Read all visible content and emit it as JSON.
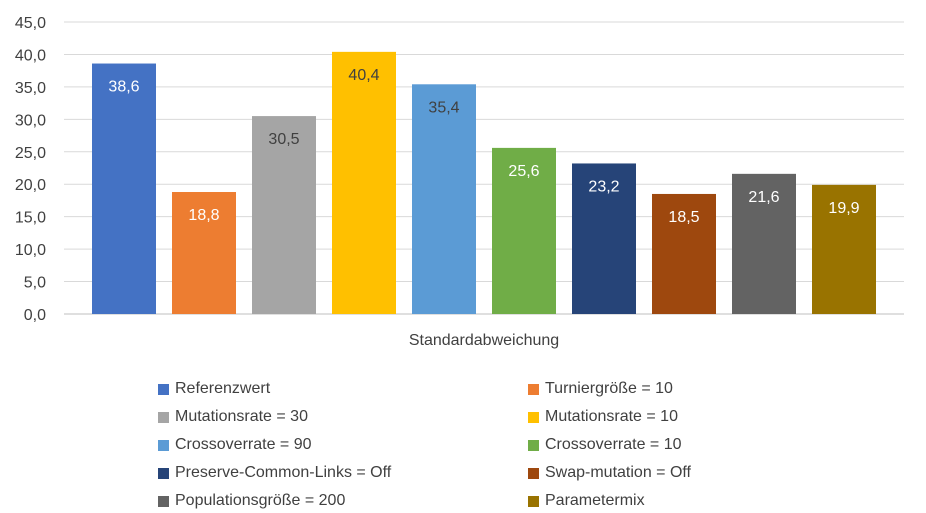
{
  "chart_data": {
    "type": "bar",
    "categories": [
      "Standardabweichung"
    ],
    "xlabel": "Standardabweichung",
    "ylabel": "",
    "ylim": [
      0,
      45
    ],
    "yticks": [
      "0,0",
      "5,0",
      "10,0",
      "15,0",
      "20,0",
      "25,0",
      "30,0",
      "35,0",
      "40,0",
      "45,0"
    ],
    "grid": true,
    "legend_position": "bottom",
    "series": [
      {
        "name": "Referenzwert",
        "values": [
          38.6
        ],
        "label": "38,6",
        "color": "#4472C4",
        "label_color": "#ffffff"
      },
      {
        "name": "Turniergröße = 10",
        "values": [
          18.8
        ],
        "label": "18,8",
        "color": "#ED7D31",
        "label_color": "#ffffff"
      },
      {
        "name": "Mutationsrate = 30",
        "values": [
          30.5
        ],
        "label": "30,5",
        "color": "#A5A5A5",
        "label_color": "#404040"
      },
      {
        "name": "Mutationsrate = 10",
        "values": [
          40.4
        ],
        "label": "40,4",
        "color": "#FFC000",
        "label_color": "#404040"
      },
      {
        "name": "Crossoverrate = 90",
        "values": [
          35.4
        ],
        "label": "35,4",
        "color": "#5B9BD5",
        "label_color": "#404040"
      },
      {
        "name": "Crossoverrate = 10",
        "values": [
          25.6
        ],
        "label": "25,6",
        "color": "#70AD47",
        "label_color": "#ffffff"
      },
      {
        "name": "Preserve-Common-Links = Off",
        "values": [
          23.2
        ],
        "label": "23,2",
        "color": "#264478",
        "label_color": "#ffffff"
      },
      {
        "name": "Swap-mutation = Off",
        "values": [
          18.5
        ],
        "label": "18,5",
        "color": "#9E480E",
        "label_color": "#ffffff"
      },
      {
        "name": "Populationsgröße = 200",
        "values": [
          21.6
        ],
        "label": "21,6",
        "color": "#636363",
        "label_color": "#ffffff"
      },
      {
        "name": "Parametermix",
        "values": [
          19.9
        ],
        "label": "19,9",
        "color": "#997300",
        "label_color": "#ffffff"
      }
    ]
  }
}
